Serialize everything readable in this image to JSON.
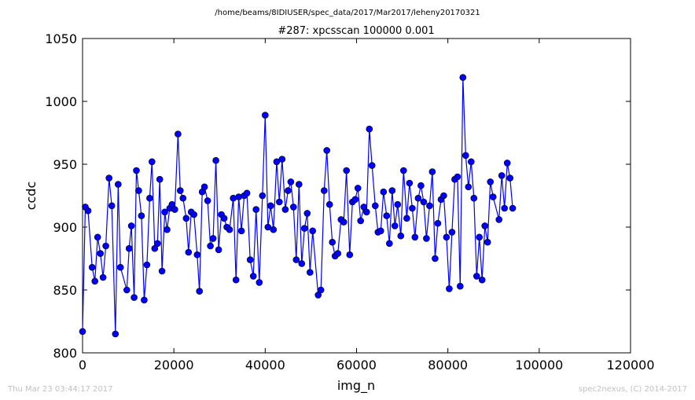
{
  "page": {
    "path_title": "/home/beams/8IDIUSER/spec_data/2017/Mar2017/leheny20170321",
    "timestamp": "Thu Mar 23 03:44:17 2017",
    "credit": "spec2nexus, (C) 2014-2017"
  },
  "chart_data": {
    "type": "line",
    "title": "#287: xpcsscan 100000 0.001",
    "xlabel": "img_n",
    "ylabel": "ccdc",
    "xlim": [
      0,
      120000
    ],
    "ylim": [
      800,
      1050
    ],
    "xticks": [
      0,
      20000,
      40000,
      60000,
      80000,
      100000,
      120000
    ],
    "yticks": [
      800,
      850,
      900,
      950,
      1000,
      1050
    ],
    "grid": false,
    "legend": "none",
    "colors": {
      "line": "#0000ff",
      "marker": "#0000ff",
      "frame": "#000000"
    },
    "series": [
      {
        "marker": "circle",
        "points": [
          [
            0,
            817
          ],
          [
            600,
            916
          ],
          [
            1200,
            913
          ],
          [
            2100,
            868
          ],
          [
            2700,
            857
          ],
          [
            3300,
            892
          ],
          [
            3900,
            879
          ],
          [
            4500,
            860
          ],
          [
            5100,
            885
          ],
          [
            5800,
            939
          ],
          [
            6400,
            917
          ],
          [
            7200,
            815
          ],
          [
            7800,
            934
          ],
          [
            8300,
            868
          ],
          [
            9700,
            850
          ],
          [
            10200,
            883
          ],
          [
            10700,
            901
          ],
          [
            11300,
            844
          ],
          [
            11800,
            945
          ],
          [
            12300,
            929
          ],
          [
            12900,
            909
          ],
          [
            13500,
            842
          ],
          [
            14100,
            870
          ],
          [
            14700,
            923
          ],
          [
            15200,
            952
          ],
          [
            15800,
            883
          ],
          [
            16400,
            887
          ],
          [
            16900,
            938
          ],
          [
            17400,
            865
          ],
          [
            18000,
            912
          ],
          [
            18500,
            898
          ],
          [
            19100,
            915
          ],
          [
            19600,
            918
          ],
          [
            20200,
            914
          ],
          [
            20900,
            974
          ],
          [
            21400,
            929
          ],
          [
            22000,
            923
          ],
          [
            22700,
            907
          ],
          [
            23200,
            880
          ],
          [
            23800,
            912
          ],
          [
            24400,
            910
          ],
          [
            25100,
            878
          ],
          [
            25600,
            849
          ],
          [
            26200,
            928
          ],
          [
            26700,
            932
          ],
          [
            27400,
            921
          ],
          [
            28000,
            885
          ],
          [
            28600,
            891
          ],
          [
            29200,
            953
          ],
          [
            29800,
            882
          ],
          [
            30400,
            910
          ],
          [
            31000,
            907
          ],
          [
            31600,
            900
          ],
          [
            32200,
            898
          ],
          [
            33000,
            923
          ],
          [
            33600,
            858
          ],
          [
            34200,
            924
          ],
          [
            34800,
            897
          ],
          [
            35400,
            925
          ],
          [
            36000,
            927
          ],
          [
            36700,
            874
          ],
          [
            37400,
            861
          ],
          [
            38000,
            914
          ],
          [
            38700,
            856
          ],
          [
            39400,
            925
          ],
          [
            40000,
            989
          ],
          [
            40600,
            900
          ],
          [
            41200,
            917
          ],
          [
            41800,
            898
          ],
          [
            42500,
            952
          ],
          [
            43100,
            920
          ],
          [
            43700,
            954
          ],
          [
            44400,
            914
          ],
          [
            45000,
            929
          ],
          [
            45600,
            936
          ],
          [
            46200,
            916
          ],
          [
            46800,
            874
          ],
          [
            47400,
            934
          ],
          [
            48000,
            871
          ],
          [
            48600,
            899
          ],
          [
            49200,
            911
          ],
          [
            49800,
            864
          ],
          [
            50400,
            897
          ],
          [
            51600,
            846
          ],
          [
            52200,
            850
          ],
          [
            52900,
            929
          ],
          [
            53500,
            961
          ],
          [
            54100,
            918
          ],
          [
            54700,
            888
          ],
          [
            55300,
            877
          ],
          [
            55900,
            879
          ],
          [
            56600,
            906
          ],
          [
            57200,
            904
          ],
          [
            57800,
            945
          ],
          [
            58500,
            878
          ],
          [
            59100,
            920
          ],
          [
            59700,
            922
          ],
          [
            60300,
            931
          ],
          [
            60900,
            905
          ],
          [
            61600,
            916
          ],
          [
            62200,
            912
          ],
          [
            62800,
            978
          ],
          [
            63400,
            949
          ],
          [
            64100,
            917
          ],
          [
            64700,
            896
          ],
          [
            65300,
            897
          ],
          [
            65900,
            928
          ],
          [
            66600,
            909
          ],
          [
            67200,
            887
          ],
          [
            67800,
            929
          ],
          [
            68400,
            901
          ],
          [
            69000,
            918
          ],
          [
            69700,
            893
          ],
          [
            70300,
            945
          ],
          [
            71000,
            907
          ],
          [
            71600,
            935
          ],
          [
            72200,
            915
          ],
          [
            72800,
            892
          ],
          [
            73500,
            923
          ],
          [
            74100,
            933
          ],
          [
            74700,
            920
          ],
          [
            75300,
            891
          ],
          [
            76000,
            917
          ],
          [
            76600,
            944
          ],
          [
            77200,
            875
          ],
          [
            77800,
            903
          ],
          [
            78500,
            922
          ],
          [
            79100,
            925
          ],
          [
            79700,
            892
          ],
          [
            80300,
            851
          ],
          [
            80900,
            896
          ],
          [
            81500,
            938
          ],
          [
            82100,
            940
          ],
          [
            82700,
            853
          ],
          [
            83300,
            1019
          ],
          [
            83900,
            957
          ],
          [
            84500,
            932
          ],
          [
            85100,
            952
          ],
          [
            85700,
            923
          ],
          [
            86300,
            861
          ],
          [
            86900,
            892
          ],
          [
            87500,
            858
          ],
          [
            88100,
            901
          ],
          [
            88700,
            888
          ],
          [
            89300,
            936
          ],
          [
            89900,
            924
          ],
          [
            91200,
            906
          ],
          [
            91800,
            941
          ],
          [
            92400,
            915
          ],
          [
            93000,
            951
          ],
          [
            93600,
            939
          ],
          [
            94200,
            915
          ]
        ]
      }
    ]
  }
}
